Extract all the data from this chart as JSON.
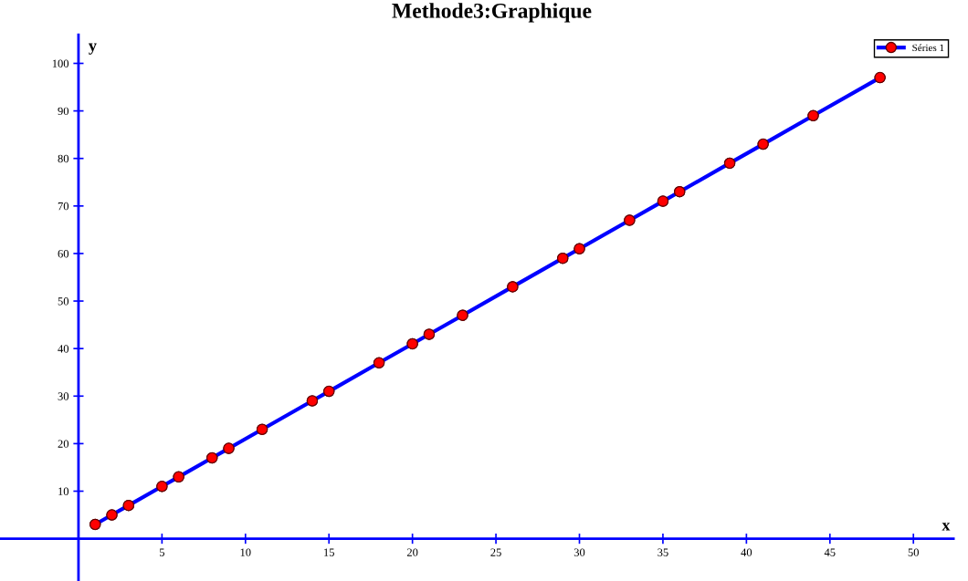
{
  "chart_data": {
    "type": "line",
    "title": "Methode3:Graphique",
    "xlabel": "x",
    "ylabel": "y",
    "x": [
      1,
      2,
      3,
      5,
      6,
      8,
      9,
      11,
      14,
      15,
      18,
      20,
      21,
      23,
      26,
      29,
      30,
      33,
      35,
      36,
      39,
      41,
      44,
      48
    ],
    "series": [
      {
        "name": "Séries 1",
        "color": "#0000ff",
        "colors": [
          "#ff0000",
          "#ff0000",
          "#ff0000",
          "#ff0000",
          "#ff0000",
          "#ff0000",
          "#ff0000",
          "#ff0000",
          "#ff0000",
          "#ff0000",
          "#ff0000",
          "#ff0000",
          "#ff0000",
          "#ff0000",
          "#ff0000",
          "#ff0000",
          "#ff0000",
          "#ff0000",
          "#ff0000",
          "#ff0000",
          "#ff0000",
          "#ff0000",
          "#ff0000",
          "#ff0000"
        ],
        "values": [
          3,
          5,
          7,
          11,
          13,
          17,
          19,
          23,
          29,
          31,
          37,
          41,
          43,
          47,
          53,
          59,
          61,
          67,
          71,
          73,
          79,
          83,
          89,
          97
        ]
      }
    ],
    "xlim": [
      -4.7,
      52.4
    ],
    "ylim": [
      -8.9,
      106
    ],
    "xticks": [
      5,
      10,
      15,
      20,
      25,
      30,
      35,
      40,
      45,
      50
    ],
    "yticks": [
      10,
      20,
      30,
      40,
      50,
      60,
      70,
      80,
      90,
      100
    ],
    "marker": "circle",
    "line_style": "solid",
    "legend": "top right",
    "grid": false
  }
}
